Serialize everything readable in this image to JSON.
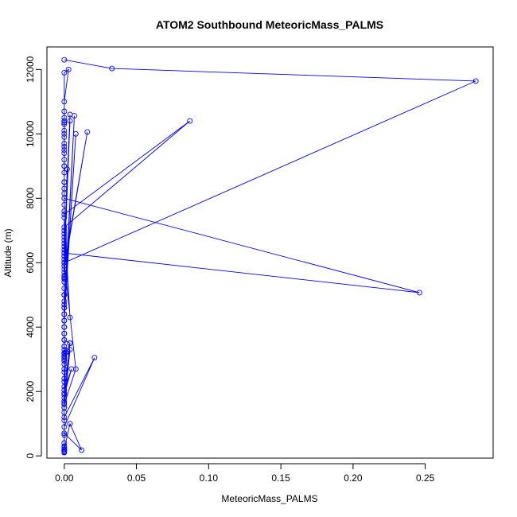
{
  "chart_data": {
    "type": "line",
    "title": "ATOM2 Southbound MeteoricMass_PALMS",
    "xlabel": "MeteoricMass_PALMS",
    "ylabel": "Altitude (m)",
    "xlim": [
      -0.012,
      0.297
    ],
    "ylim": [
      -70,
      12700
    ],
    "xticks": [
      0.0,
      0.05,
      0.1,
      0.15,
      0.2,
      0.25
    ],
    "xtick_labels": [
      "0.00",
      "0.05",
      "0.10",
      "0.15",
      "0.20",
      "0.25"
    ],
    "yticks": [
      0,
      2000,
      4000,
      6000,
      8000,
      10000,
      12000
    ],
    "ytick_labels": [
      "0",
      "2000",
      "4000",
      "6000",
      "8000",
      "10000",
      "12000"
    ],
    "grid": false,
    "legend": "none",
    "markers": "open-circle",
    "color": "#0000ff",
    "series": [
      {
        "x": [
          0.0,
          0.033,
          0.285,
          0.0,
          0.0,
          0.0,
          0.0,
          0.0,
          0.0,
          0.0,
          0.0,
          0.0,
          0.0,
          0.0,
          0.0,
          0.0,
          0.004,
          0.002,
          0.0,
          0.0,
          0.0,
          0.0,
          0.0,
          0.0,
          0.0,
          0.0,
          0.0,
          0.0,
          0.005,
          0.0,
          0.0,
          0.0,
          0.0,
          0.004,
          0.0,
          0.0,
          0.0,
          0.021,
          0.0,
          0.0,
          0.0,
          0.0,
          0.0,
          0.0,
          0.0,
          0.0,
          0.0,
          0.0,
          0.0,
          0.0,
          0.004,
          0.012,
          0.0,
          0.0,
          0.0,
          0.004,
          0.0,
          0.001,
          0.0,
          0.008,
          0.0,
          0.0,
          0.0,
          0.0,
          0.0,
          0.0,
          0.0,
          0.0,
          0.004,
          0.0,
          0.0,
          0.0,
          0.0,
          0.246,
          0.0,
          0.0,
          0.0,
          0.0,
          0.0,
          0.0,
          0.0,
          0.0,
          0.0,
          0.0,
          0.0,
          0.0,
          0.0,
          0.0,
          0.0,
          0.0,
          0.0,
          0.0,
          0.003,
          0.0,
          0.0,
          0.0,
          0.0,
          0.0,
          0.0,
          0.0,
          0.087,
          0.0,
          0.0,
          0.0,
          0.0,
          0.0,
          0.0,
          0.0,
          0.016,
          0.0,
          0.0,
          0.0,
          0.002,
          0.0,
          0.0,
          0.0,
          0.0,
          0.0,
          0.008,
          0.0,
          0.0,
          0.0,
          0.0,
          0.0,
          0.0,
          0.0,
          0.0,
          0.0,
          0.0,
          0.0,
          0.0,
          0.0,
          0.0,
          0.0,
          0.007,
          0.0,
          0.0,
          0.0,
          0.0,
          0.004,
          0.0,
          0.0,
          0.004,
          0.0,
          0.0,
          0.0,
          0.0
        ],
        "y": [
          12300,
          12030,
          11640,
          6000,
          5900,
          5700,
          5550,
          5500,
          5000,
          4700,
          4600,
          4400,
          4200,
          4000,
          3800,
          3600,
          3500,
          3250,
          3150,
          3050,
          2950,
          2850,
          2700,
          2600,
          2400,
          2300,
          2150,
          2050,
          2700,
          1900,
          1800,
          1700,
          1650,
          3300,
          1500,
          1350,
          1200,
          3050,
          900,
          650,
          400,
          300,
          250,
          200,
          200,
          150,
          150,
          120,
          100,
          200,
          1000,
          180,
          700,
          1100,
          1500,
          3500,
          1950,
          3200,
          1600,
          2700,
          6000,
          6200,
          6300,
          6400,
          6600,
          6800,
          6900,
          7000,
          4300,
          7400,
          7600,
          7800,
          6300,
          5070,
          8000,
          8150,
          8300,
          8500,
          8800,
          9000,
          9200,
          9400,
          9600,
          9700,
          9900,
          10100,
          10300,
          10350,
          10400,
          10500,
          10700,
          11900,
          12000,
          11000,
          10000,
          9500,
          9000,
          8500,
          8000,
          7500,
          10400,
          7100,
          6700,
          6400,
          6200,
          6100,
          6000,
          5900,
          10060,
          5800,
          5600,
          5400,
          8900,
          5200,
          5000,
          4800,
          4600,
          4400,
          10000,
          4200,
          4000,
          3800,
          3600,
          3400,
          3300,
          3200,
          3100,
          3000,
          3200,
          3400,
          3600,
          3800,
          4000,
          4200,
          10560,
          4600,
          5000,
          5500,
          6000,
          10400,
          6300,
          6000,
          10600,
          6500,
          6000,
          5500,
          5000
        ]
      }
    ]
  }
}
